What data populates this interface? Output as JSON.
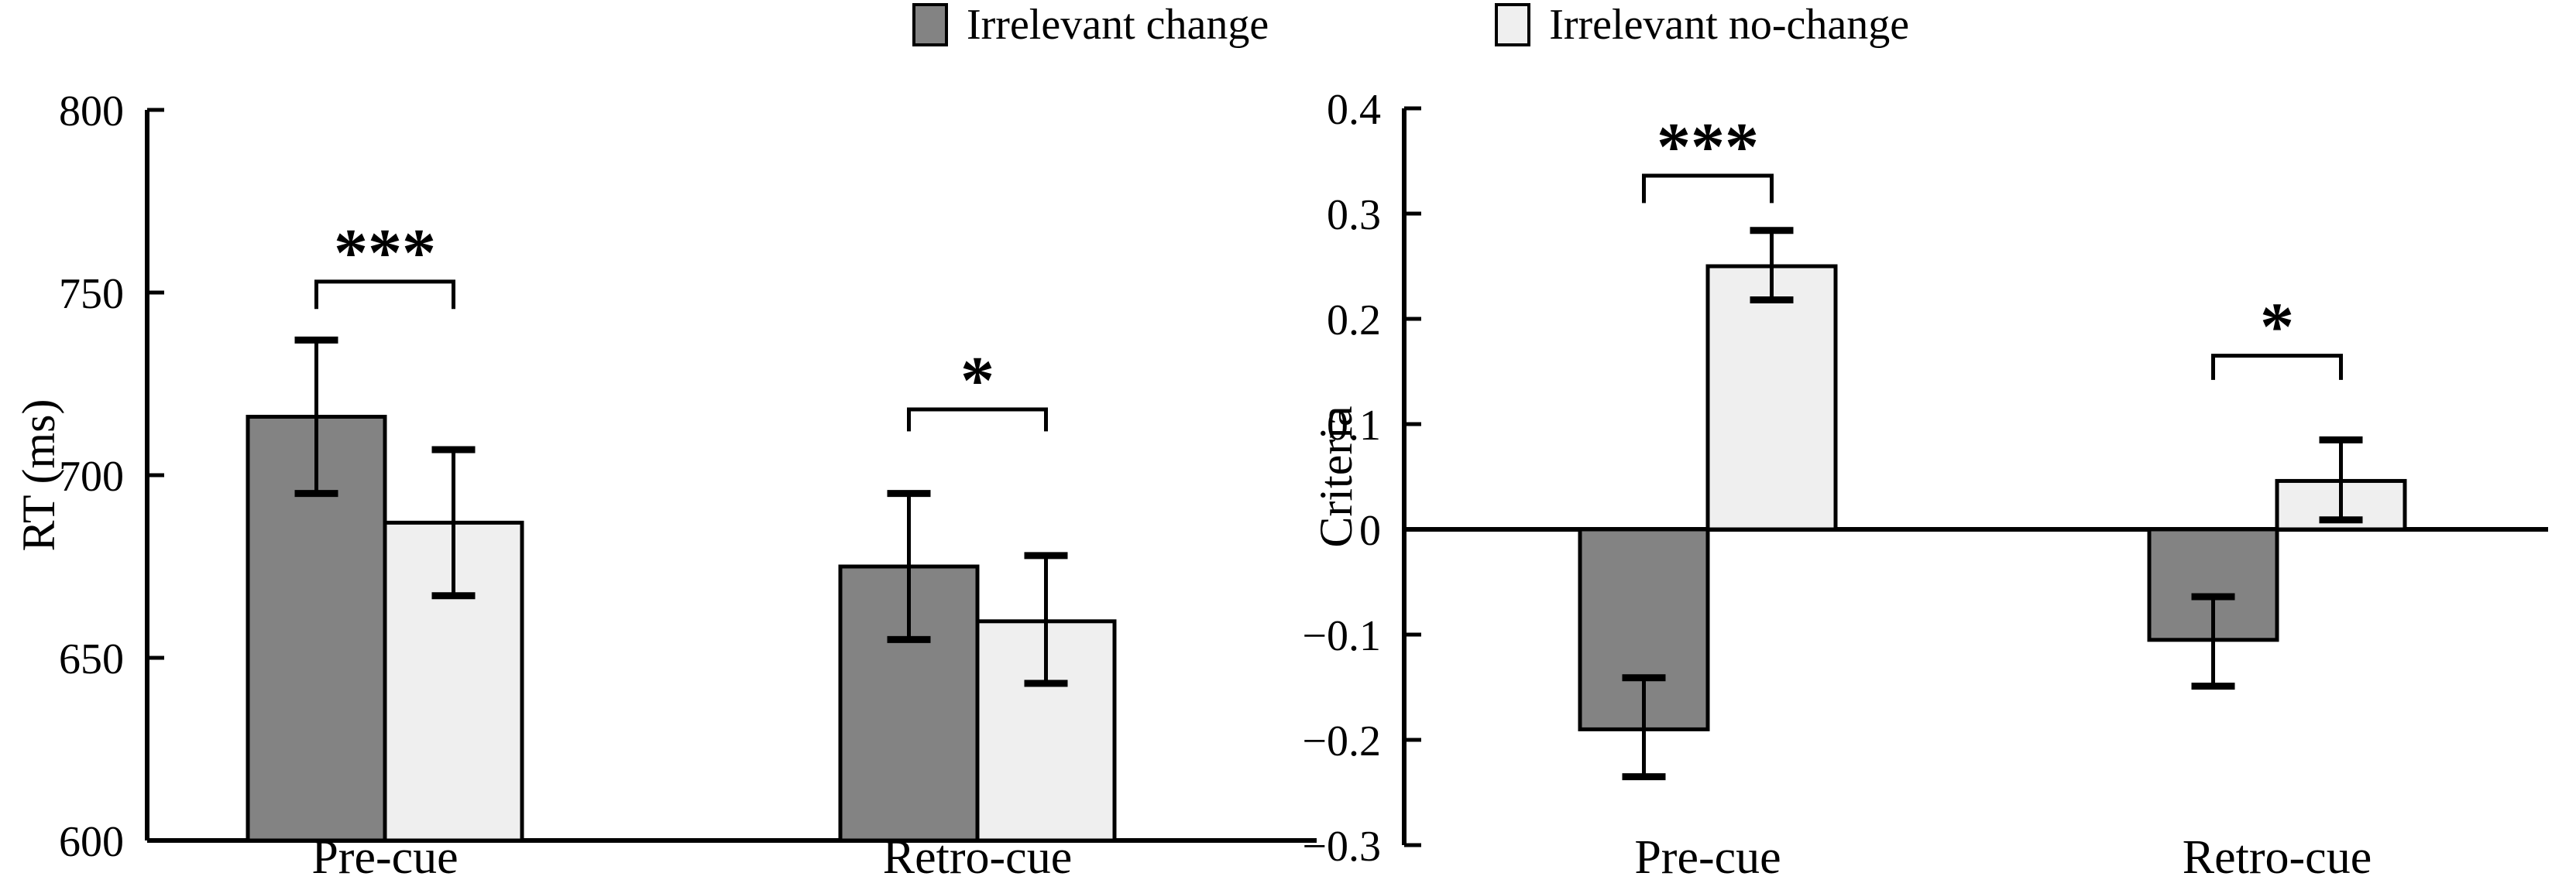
{
  "legend": {
    "items": [
      {
        "label": "Irrelevant change",
        "color": "#838383"
      },
      {
        "label": "Irrelevant no-change",
        "color": "#efefef"
      }
    ]
  },
  "chart_data": [
    {
      "type": "bar",
      "title": "",
      "xlabel": "",
      "ylabel": "RT (ms)",
      "categories": [
        "Pre-cue",
        "Retro-cue"
      ],
      "ylim": [
        600,
        800
      ],
      "bar_base": 600,
      "grid": false,
      "legend_position": "top-center",
      "yticks": [
        {
          "value": 800,
          "label": "800"
        },
        {
          "value": 750,
          "label": "750"
        },
        {
          "value": 700,
          "label": "700"
        },
        {
          "value": 650,
          "label": "650"
        },
        {
          "value": 600,
          "label": "600"
        }
      ],
      "series": [
        {
          "name": "Irrelevant change",
          "color": "#838383",
          "values": [
            716,
            675
          ],
          "error_low": [
            695,
            655
          ],
          "error_high": [
            737,
            695
          ]
        },
        {
          "name": "Irrelevant no-change",
          "color": "#efefef",
          "values": [
            687,
            660
          ],
          "error_low": [
            667,
            643
          ],
          "error_high": [
            707,
            678
          ]
        }
      ],
      "significance": [
        {
          "pair": "Pre-cue",
          "label": "***",
          "bracket_y": 753,
          "leg_drop": 7.5
        },
        {
          "pair": "Retro-cue",
          "label": "*",
          "bracket_y": 718,
          "leg_drop": 6
        }
      ]
    },
    {
      "type": "bar",
      "title": "",
      "xlabel": "",
      "ylabel": "Criteria",
      "categories": [
        "Pre-cue",
        "Retro-cue"
      ],
      "ylim": [
        -0.3,
        0.4
      ],
      "bar_base": 0,
      "grid": false,
      "legend_position": "top-center",
      "yticks": [
        {
          "value": 0.4,
          "label": "0.4"
        },
        {
          "value": 0.3,
          "label": "0.3"
        },
        {
          "value": 0.2,
          "label": "0.2"
        },
        {
          "value": 0.1,
          "label": "0.1"
        },
        {
          "value": 0,
          "label": "0"
        },
        {
          "value": -0.1,
          "label": "−0.1"
        },
        {
          "value": -0.2,
          "label": "−0.2"
        },
        {
          "value": -0.3,
          "label": "−0.3"
        }
      ],
      "series": [
        {
          "name": "Irrelevant change",
          "color": "#838383",
          "values": [
            -0.19,
            -0.105
          ],
          "error_low": [
            -0.235,
            -0.149
          ],
          "error_high": [
            -0.141,
            -0.064
          ]
        },
        {
          "name": "Irrelevant no-change",
          "color": "#efefef",
          "values": [
            0.25,
            0.046
          ],
          "error_low": [
            0.218,
            0.009
          ],
          "error_high": [
            0.284,
            0.085
          ]
        }
      ],
      "significance": [
        {
          "pair": "Pre-cue",
          "label": "***",
          "bracket_y": 0.336,
          "leg_drop": 0.026
        },
        {
          "pair": "Retro-cue",
          "label": "*",
          "bracket_y": 0.165,
          "leg_drop": 0.023
        }
      ]
    }
  ]
}
